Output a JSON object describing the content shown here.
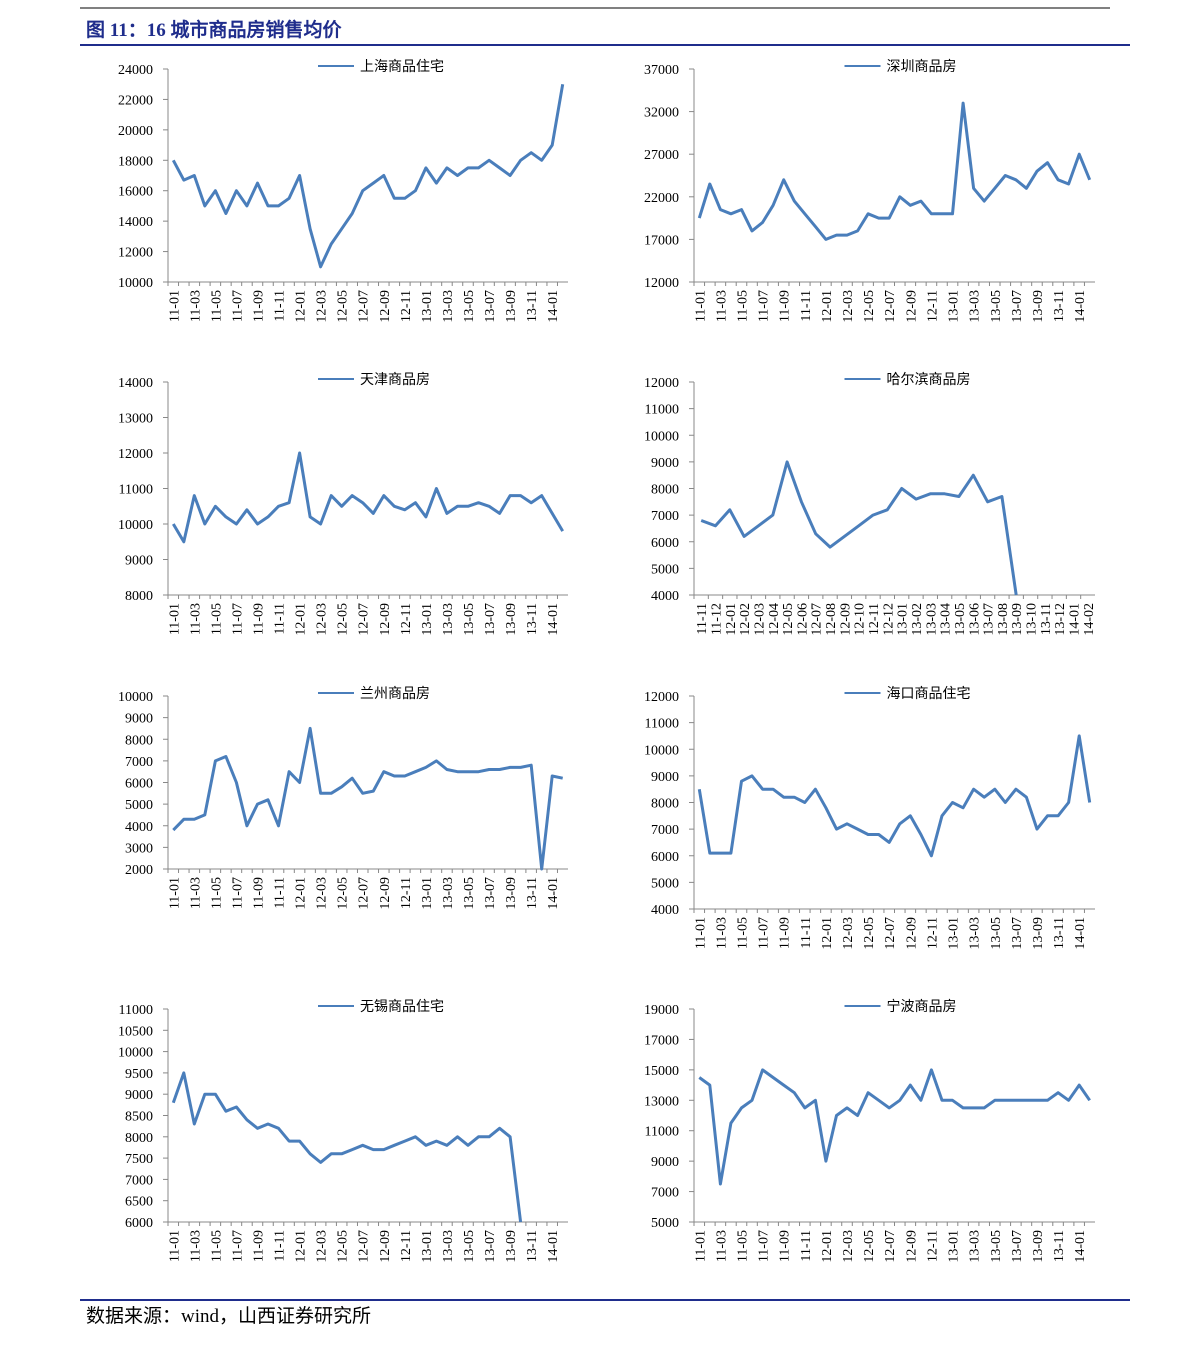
{
  "header": {
    "title": "图 11：16 城市商品房销售均价"
  },
  "footer": {
    "source": "数据来源：wind，山西证券研究所"
  },
  "chart_data": [
    {
      "type": "line",
      "legend": "top",
      "categories": [
        "11-01",
        null,
        "11-03",
        null,
        "11-05",
        null,
        "11-07",
        null,
        "11-09",
        null,
        "11-11",
        null,
        "12-01",
        null,
        "12-03",
        null,
        "12-05",
        null,
        "12-07",
        null,
        "12-09",
        null,
        "12-11",
        null,
        "13-01",
        null,
        "13-03",
        null,
        "13-05",
        null,
        "13-07",
        null,
        "13-09",
        null,
        "13-11",
        null,
        "14-01",
        null
      ],
      "series": [
        {
          "name": "上海商品住宅",
          "color": "#4a7ebb",
          "values": [
            18000,
            16700,
            17000,
            15000,
            16000,
            14500,
            16000,
            15000,
            16500,
            15000,
            15000,
            15500,
            17000,
            13500,
            11000,
            12500,
            13500,
            14500,
            16000,
            16500,
            17000,
            15500,
            15500,
            16000,
            17500,
            16500,
            17500,
            17000,
            17500,
            17500,
            18000,
            17500,
            17000,
            18000,
            18500,
            18000,
            19000,
            23000
          ]
        }
      ],
      "ylim": [
        10000,
        24000
      ],
      "yticks": [
        10000,
        12000,
        14000,
        16000,
        18000,
        20000,
        22000,
        24000
      ]
    },
    {
      "type": "line",
      "legend": "top",
      "categories": [
        "11-01",
        null,
        "11-03",
        null,
        "11-05",
        null,
        "11-07",
        null,
        "11-09",
        null,
        "11-11",
        null,
        "12-01",
        null,
        "12-03",
        null,
        "12-05",
        null,
        "12-07",
        null,
        "12-09",
        null,
        "12-11",
        null,
        "13-01",
        null,
        "13-03",
        null,
        "13-05",
        null,
        "13-07",
        null,
        "13-09",
        null,
        "13-11",
        null,
        "14-01",
        null
      ],
      "series": [
        {
          "name": "深圳商品房",
          "color": "#4a7ebb",
          "values": [
            19500,
            23500,
            20500,
            20000,
            20500,
            18000,
            19000,
            21000,
            24000,
            21500,
            20000,
            18500,
            17000,
            17500,
            17500,
            18000,
            20000,
            19500,
            19500,
            22000,
            21000,
            21500,
            20000,
            20000,
            20000,
            33000,
            23000,
            21500,
            23000,
            24500,
            24000,
            23000,
            25000,
            26000,
            24000,
            23500,
            27000,
            24000
          ]
        }
      ],
      "ylim": [
        12000,
        37000
      ],
      "yticks": [
        12000,
        17000,
        22000,
        27000,
        32000,
        37000
      ]
    },
    {
      "type": "line",
      "legend": "top",
      "categories": [
        "11-01",
        null,
        "11-03",
        null,
        "11-05",
        null,
        "11-07",
        null,
        "11-09",
        null,
        "11-11",
        null,
        "12-01",
        null,
        "12-03",
        null,
        "12-05",
        null,
        "12-07",
        null,
        "12-09",
        null,
        "12-11",
        null,
        "13-01",
        null,
        "13-03",
        null,
        "13-05",
        null,
        "13-07",
        null,
        "13-09",
        null,
        "13-11",
        null,
        "14-01",
        null
      ],
      "series": [
        {
          "name": "天津商品房",
          "color": "#4a7ebb",
          "values": [
            10000,
            9500,
            10800,
            10000,
            10500,
            10200,
            10000,
            10400,
            10000,
            10200,
            10500,
            10600,
            12000,
            10200,
            10000,
            10800,
            10500,
            10800,
            10600,
            10300,
            10800,
            10500,
            10400,
            10600,
            10200,
            11000,
            10300,
            10500,
            10500,
            10600,
            10500,
            10300,
            10800,
            10800,
            10600,
            10800,
            10300,
            9800
          ]
        }
      ],
      "ylim": [
        8000,
        14000
      ],
      "yticks": [
        8000,
        9000,
        10000,
        11000,
        12000,
        13000,
        14000
      ]
    },
    {
      "type": "line",
      "legend": "top",
      "categories": [
        "11-11",
        "11-12",
        "12-01",
        "12-02",
        "12-03",
        "12-04",
        "12-05",
        "12-06",
        "12-07",
        "12-08",
        "12-09",
        "12-10",
        "12-11",
        "12-12",
        "13-01",
        "13-02",
        "13-03",
        "13-04",
        "13-05",
        "13-06",
        "13-07",
        "13-08",
        "13-09",
        "13-10",
        "13-11",
        "13-12",
        "14-01",
        "14-02"
      ],
      "series": [
        {
          "name": "哈尔滨商品房",
          "color": "#4a7ebb",
          "values": [
            6800,
            6600,
            7200,
            6200,
            6600,
            7000,
            9000,
            7500,
            6300,
            5800,
            6200,
            6600,
            7000,
            7200,
            8000,
            7600,
            7800,
            7800,
            7700,
            8500,
            7500,
            7700,
            4000,
            null,
            null,
            null,
            null,
            null
          ]
        }
      ],
      "ylim": [
        4000,
        12000
      ],
      "yticks": [
        4000,
        5000,
        6000,
        7000,
        8000,
        9000,
        10000,
        11000,
        12000
      ]
    },
    {
      "type": "line",
      "legend": "top",
      "categories": [
        "11-01",
        null,
        "11-03",
        null,
        "11-05",
        null,
        "11-07",
        null,
        "11-09",
        null,
        "11-11",
        null,
        "12-01",
        null,
        "12-03",
        null,
        "12-05",
        null,
        "12-07",
        null,
        "12-09",
        null,
        "12-11",
        null,
        "13-01",
        null,
        "13-03",
        null,
        "13-05",
        null,
        "13-07",
        null,
        "13-09",
        null,
        "13-11",
        null,
        "14-01",
        null
      ],
      "series": [
        {
          "name": "兰州商品房",
          "color": "#4a7ebb",
          "values": [
            3800,
            4300,
            4300,
            4500,
            7000,
            7200,
            6000,
            4000,
            5000,
            5200,
            4000,
            6500,
            6000,
            8500,
            5500,
            5500,
            5800,
            6200,
            5500,
            5600,
            6500,
            6300,
            6300,
            6500,
            6700,
            7000,
            6600,
            6500,
            6500,
            6500,
            6600,
            6600,
            6700,
            6700,
            6800,
            2000,
            6300,
            6200
          ]
        }
      ],
      "ylim": [
        2000,
        10000
      ],
      "yticks": [
        2000,
        3000,
        4000,
        5000,
        6000,
        7000,
        8000,
        9000,
        10000
      ]
    },
    {
      "type": "line",
      "legend": "top",
      "categories": [
        "11-01",
        null,
        "11-03",
        null,
        "11-05",
        null,
        "11-07",
        null,
        "11-09",
        null,
        "11-11",
        null,
        "12-01",
        null,
        "12-03",
        null,
        "12-05",
        null,
        "12-07",
        null,
        "12-09",
        null,
        "12-11",
        null,
        "13-01",
        null,
        "13-03",
        null,
        "13-05",
        null,
        "13-07",
        null,
        "13-09",
        null,
        "13-11",
        null,
        "14-01",
        null
      ],
      "series": [
        {
          "name": "海口商品住宅",
          "color": "#4a7ebb",
          "values": [
            8500,
            6100,
            6100,
            6100,
            8800,
            9000,
            8500,
            8500,
            8200,
            8200,
            8000,
            8500,
            7800,
            7000,
            7200,
            7000,
            6800,
            6800,
            6500,
            7200,
            7500,
            6800,
            6000,
            7500,
            8000,
            7800,
            8500,
            8200,
            8500,
            8000,
            8500,
            8200,
            7000,
            7500,
            7500,
            8000,
            10500,
            8000
          ]
        }
      ],
      "ylim": [
        4000,
        12000
      ],
      "yticks": [
        4000,
        5000,
        6000,
        7000,
        8000,
        9000,
        10000,
        11000,
        12000
      ]
    },
    {
      "type": "line",
      "legend": "top",
      "categories": [
        "11-01",
        null,
        "11-03",
        null,
        "11-05",
        null,
        "11-07",
        null,
        "11-09",
        null,
        "11-11",
        null,
        "12-01",
        null,
        "12-03",
        null,
        "12-05",
        null,
        "12-07",
        null,
        "12-09",
        null,
        "12-11",
        null,
        "13-01",
        null,
        "13-03",
        null,
        "13-05",
        null,
        "13-07",
        null,
        "13-09",
        null,
        "13-11",
        null,
        "14-01",
        null
      ],
      "series": [
        {
          "name": "无锡商品住宅",
          "color": "#4a7ebb",
          "values": [
            8800,
            9500,
            8300,
            9000,
            9000,
            8600,
            8700,
            8400,
            8200,
            8300,
            8200,
            7900,
            7900,
            7600,
            7400,
            7600,
            7600,
            7700,
            7800,
            7700,
            7700,
            7800,
            7900,
            8000,
            7800,
            7900,
            7800,
            8000,
            7800,
            8000,
            8000,
            8200,
            8000,
            6000,
            null,
            null,
            null,
            null
          ]
        }
      ],
      "ylim": [
        6000,
        11000
      ],
      "yticks": [
        6000,
        6500,
        7000,
        7500,
        8000,
        8500,
        9000,
        9500,
        10000,
        10500,
        11000
      ]
    },
    {
      "type": "line",
      "legend": "top",
      "categories": [
        "11-01",
        null,
        "11-03",
        null,
        "11-05",
        null,
        "11-07",
        null,
        "11-09",
        null,
        "11-11",
        null,
        "12-01",
        null,
        "12-03",
        null,
        "12-05",
        null,
        "12-07",
        null,
        "12-09",
        null,
        "12-11",
        null,
        "13-01",
        null,
        "13-03",
        null,
        "13-05",
        null,
        "13-07",
        null,
        "13-09",
        null,
        "13-11",
        null,
        "14-01",
        null
      ],
      "series": [
        {
          "name": "宁波商品房",
          "color": "#4a7ebb",
          "values": [
            14500,
            14000,
            7500,
            11500,
            12500,
            13000,
            15000,
            14500,
            14000,
            13500,
            12500,
            13000,
            9000,
            12000,
            12500,
            12000,
            13500,
            13000,
            12500,
            13000,
            14000,
            13000,
            15000,
            13000,
            13000,
            12500,
            12500,
            12500,
            13000,
            13000,
            13000,
            13000,
            13000,
            13000,
            13500,
            13000,
            14000,
            13000
          ]
        }
      ],
      "ylim": [
        5000,
        19000
      ],
      "yticks": [
        5000,
        7000,
        9000,
        11000,
        13000,
        15000,
        17000,
        19000
      ]
    }
  ]
}
